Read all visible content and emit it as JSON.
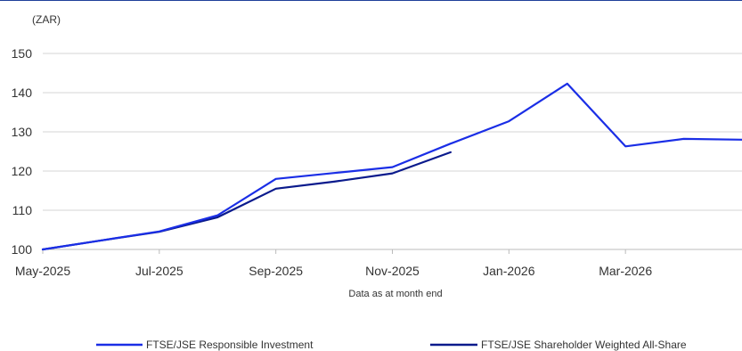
{
  "chart_data": {
    "type": "line",
    "unit_label": "(ZAR)",
    "xlabel": "Data as at month end",
    "ylim": [
      100,
      150
    ],
    "yticks": [
      100,
      110,
      120,
      130,
      140,
      150
    ],
    "grid": true,
    "legend_position": "bottom",
    "x": [
      "May-2025",
      "Jun-2025",
      "Jul-2025",
      "Aug-2025",
      "Sep-2025",
      "Oct-2025",
      "Nov-2025",
      "Dec-2025",
      "Jan-2026",
      "Feb-2026",
      "Mar-2026",
      "Apr-2026",
      "May-2026"
    ],
    "xtick_labels": [
      "May-2025",
      "Jul-2025",
      "Sep-2025",
      "Nov-2025",
      "Jan-2026",
      "Mar-2026"
    ],
    "series": [
      {
        "name": "FTSE/JSE Responsible Investment",
        "color": "#1a2ee6",
        "values": [
          100,
          102.3,
          104.6,
          108.7,
          118.0,
          119.5,
          121.0,
          127.0,
          132.7,
          142.3,
          126.3,
          128.2,
          128.0
        ]
      },
      {
        "name": "FTSE/JSE Shareholder Weighted All-Share",
        "color": "#0a1a8c",
        "values": [
          100,
          102.3,
          104.5,
          108.2,
          115.5,
          117.3,
          119.4,
          124.8,
          null,
          null,
          null,
          null,
          null
        ]
      }
    ]
  }
}
